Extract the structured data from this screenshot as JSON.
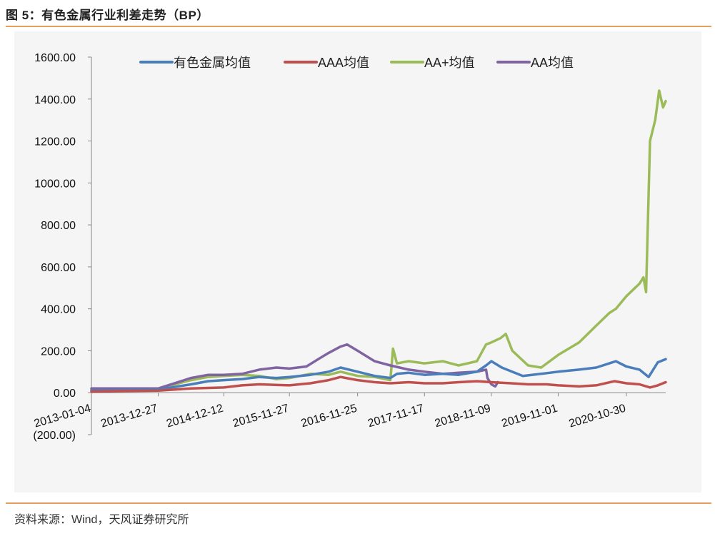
{
  "title": "图 5：有色金属行业利差走势（BP）",
  "source": "资料来源：Wind，天风证券研究所",
  "colors": {
    "series1": "#4a7ebb",
    "series2": "#c0504d",
    "series3": "#9bbb59",
    "series4": "#8064a2",
    "negative_tick": "#c00000",
    "accent_rule": "#e5a05d"
  },
  "chart_data": {
    "type": "line",
    "title": "图 5：有色金属行业利差走势（BP）",
    "ylim": [
      -200,
      1600
    ],
    "y_ticks": [
      "(200.00)",
      "0.00",
      "200.00",
      "400.00",
      "600.00",
      "800.00",
      "1000.00",
      "1200.00",
      "1400.00",
      "1600.00"
    ],
    "y_tick_values": [
      -200,
      0,
      200,
      400,
      600,
      800,
      1000,
      1200,
      1400,
      1600
    ],
    "x_ticks": [
      "2013-01-04",
      "2013-12-27",
      "2014-12-12",
      "2015-11-27",
      "2016-11-25",
      "2017-11-17",
      "2018-11-09",
      "2019-11-01",
      "2020-10-30"
    ],
    "xlim": [
      "2013-01-04",
      "2021-05-28"
    ],
    "legend_position": "top",
    "grid": false,
    "series": [
      {
        "name": "有色金属均值",
        "color": "#4a7ebb",
        "points": [
          [
            "2013-01-04",
            10
          ],
          [
            "2013-06-28",
            12
          ],
          [
            "2013-12-27",
            15
          ],
          [
            "2014-06-20",
            40
          ],
          [
            "2014-09-19",
            55
          ],
          [
            "2014-12-12",
            60
          ],
          [
            "2015-03-20",
            65
          ],
          [
            "2015-06-19",
            75
          ],
          [
            "2015-09-18",
            70
          ],
          [
            "2015-11-27",
            75
          ],
          [
            "2016-03-18",
            85
          ],
          [
            "2016-06-24",
            100
          ],
          [
            "2016-08-26",
            120
          ],
          [
            "2016-11-25",
            100
          ],
          [
            "2017-02-24",
            80
          ],
          [
            "2017-05-19",
            70
          ],
          [
            "2017-06-23",
            90
          ],
          [
            "2017-08-25",
            95
          ],
          [
            "2017-11-17",
            85
          ],
          [
            "2018-02-23",
            90
          ],
          [
            "2018-05-18",
            85
          ],
          [
            "2018-08-24",
            100
          ],
          [
            "2018-10-12",
            130
          ],
          [
            "2018-11-09",
            150
          ],
          [
            "2019-01-04",
            120
          ],
          [
            "2019-04-26",
            80
          ],
          [
            "2019-08-02",
            90
          ],
          [
            "2019-11-01",
            100
          ],
          [
            "2020-02-21",
            110
          ],
          [
            "2020-05-22",
            120
          ],
          [
            "2020-07-31",
            140
          ],
          [
            "2020-09-04",
            150
          ],
          [
            "2020-10-30",
            125
          ],
          [
            "2021-01-08",
            110
          ],
          [
            "2021-02-26",
            75
          ],
          [
            "2021-04-16",
            145
          ],
          [
            "2021-05-28",
            160
          ]
        ]
      },
      {
        "name": "AAA均值",
        "color": "#c0504d",
        "points": [
          [
            "2013-01-04",
            5
          ],
          [
            "2013-06-28",
            8
          ],
          [
            "2013-12-27",
            10
          ],
          [
            "2014-06-20",
            20
          ],
          [
            "2014-12-12",
            25
          ],
          [
            "2015-03-20",
            35
          ],
          [
            "2015-06-19",
            40
          ],
          [
            "2015-11-27",
            35
          ],
          [
            "2016-03-18",
            45
          ],
          [
            "2016-06-24",
            60
          ],
          [
            "2016-08-26",
            75
          ],
          [
            "2016-11-25",
            60
          ],
          [
            "2017-02-24",
            50
          ],
          [
            "2017-05-19",
            45
          ],
          [
            "2017-08-25",
            50
          ],
          [
            "2017-11-17",
            45
          ],
          [
            "2018-02-23",
            45
          ],
          [
            "2018-05-18",
            50
          ],
          [
            "2018-08-24",
            55
          ],
          [
            "2018-11-09",
            50
          ],
          [
            "2019-02-22",
            45
          ],
          [
            "2019-05-24",
            40
          ],
          [
            "2019-08-30",
            40
          ],
          [
            "2019-11-01",
            35
          ],
          [
            "2020-02-21",
            30
          ],
          [
            "2020-05-22",
            35
          ],
          [
            "2020-08-28",
            55
          ],
          [
            "2020-10-30",
            45
          ],
          [
            "2021-01-08",
            40
          ],
          [
            "2021-03-05",
            25
          ],
          [
            "2021-04-16",
            35
          ],
          [
            "2021-05-28",
            50
          ]
        ]
      },
      {
        "name": "AA+均值",
        "color": "#9bbb59",
        "points": [
          [
            "2013-01-04",
            15
          ],
          [
            "2013-06-28",
            15
          ],
          [
            "2013-12-27",
            20
          ],
          [
            "2014-06-20",
            60
          ],
          [
            "2014-09-19",
            75
          ],
          [
            "2014-12-12",
            80
          ],
          [
            "2015-03-20",
            85
          ],
          [
            "2015-06-19",
            80
          ],
          [
            "2015-09-18",
            65
          ],
          [
            "2015-11-27",
            70
          ],
          [
            "2016-03-18",
            90
          ],
          [
            "2016-06-24",
            85
          ],
          [
            "2016-08-26",
            100
          ],
          [
            "2016-11-25",
            80
          ],
          [
            "2017-02-24",
            75
          ],
          [
            "2017-05-19",
            60
          ],
          [
            "2017-06-02",
            210
          ],
          [
            "2017-06-23",
            140
          ],
          [
            "2017-08-25",
            150
          ],
          [
            "2017-11-17",
            140
          ],
          [
            "2018-02-23",
            150
          ],
          [
            "2018-05-18",
            130
          ],
          [
            "2018-08-24",
            150
          ],
          [
            "2018-10-12",
            230
          ],
          [
            "2018-11-09",
            240
          ],
          [
            "2018-12-28",
            260
          ],
          [
            "2019-01-25",
            280
          ],
          [
            "2019-03-01",
            200
          ],
          [
            "2019-05-24",
            130
          ],
          [
            "2019-08-02",
            120
          ],
          [
            "2019-11-01",
            180
          ],
          [
            "2020-02-21",
            240
          ],
          [
            "2020-05-22",
            320
          ],
          [
            "2020-07-31",
            380
          ],
          [
            "2020-09-04",
            400
          ],
          [
            "2020-10-30",
            460
          ],
          [
            "2020-12-04",
            490
          ],
          [
            "2021-01-08",
            520
          ],
          [
            "2021-01-29",
            550
          ],
          [
            "2021-02-12",
            480
          ],
          [
            "2021-03-05",
            1200
          ],
          [
            "2021-04-02",
            1300
          ],
          [
            "2021-04-23",
            1440
          ],
          [
            "2021-05-14",
            1360
          ],
          [
            "2021-05-28",
            1390
          ]
        ]
      },
      {
        "name": "AA均值",
        "color": "#8064a2",
        "points": [
          [
            "2013-01-04",
            20
          ],
          [
            "2013-06-28",
            20
          ],
          [
            "2013-12-27",
            20
          ],
          [
            "2014-06-20",
            70
          ],
          [
            "2014-09-19",
            85
          ],
          [
            "2014-12-12",
            85
          ],
          [
            "2015-03-20",
            90
          ],
          [
            "2015-06-19",
            110
          ],
          [
            "2015-09-18",
            120
          ],
          [
            "2015-11-27",
            115
          ],
          [
            "2016-02-26",
            125
          ],
          [
            "2016-04-29",
            160
          ],
          [
            "2016-06-24",
            190
          ],
          [
            "2016-08-26",
            220
          ],
          [
            "2016-09-30",
            230
          ],
          [
            "2016-11-25",
            200
          ],
          [
            "2017-02-24",
            150
          ],
          [
            "2017-05-19",
            130
          ],
          [
            "2017-08-25",
            110
          ],
          [
            "2017-11-17",
            100
          ],
          [
            "2018-02-23",
            90
          ],
          [
            "2018-05-18",
            95
          ],
          [
            "2018-08-24",
            100
          ],
          [
            "2018-10-12",
            110
          ],
          [
            "2018-10-19",
            70
          ],
          [
            "2018-11-09",
            40
          ],
          [
            "2018-11-30",
            30
          ],
          [
            "2018-12-14",
            50
          ]
        ]
      }
    ]
  }
}
